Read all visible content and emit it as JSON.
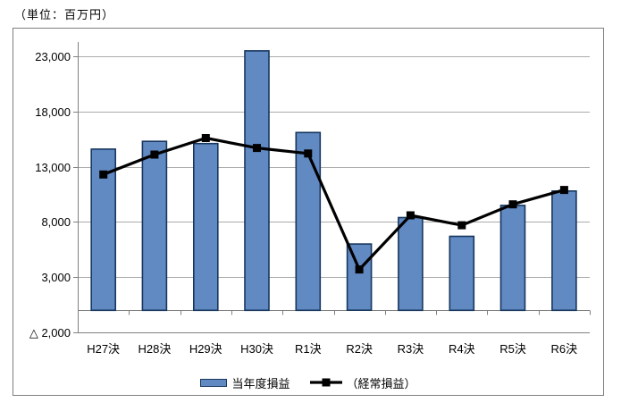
{
  "title": "（単位：百万円）",
  "chart_data": {
    "type": "bar",
    "subtype": "bar-line-combo",
    "categories": [
      "H27決",
      "H28決",
      "H29決",
      "H30決",
      "R1決",
      "R2決",
      "R3決",
      "R4決",
      "R5決",
      "R6決"
    ],
    "series": [
      {
        "name": "当年度損益",
        "type": "bar",
        "values": [
          14600,
          15300,
          15100,
          23500,
          16100,
          6000,
          8400,
          6700,
          9500,
          10800
        ]
      },
      {
        "name": "（経常損益）",
        "type": "line",
        "marker": "square",
        "values": [
          12300,
          14100,
          15600,
          14700,
          14200,
          3700,
          8600,
          7700,
          9600,
          10900
        ]
      }
    ],
    "title": "（単位：百万円）",
    "xlabel": "",
    "ylabel": "",
    "ylim": [
      -2000,
      24300
    ],
    "y_major_unit": 5000,
    "y_ticks": [
      {
        "value": 23000,
        "label": "23,000"
      },
      {
        "value": 18000,
        "label": "18,000"
      },
      {
        "value": 13000,
        "label": "13,000"
      },
      {
        "value": 8000,
        "label": "8,000"
      },
      {
        "value": 3000,
        "label": "3,000"
      },
      {
        "value": -2000,
        "label": "△ 2,000"
      }
    ],
    "grid": true,
    "legend_position": "bottom"
  },
  "legend": {
    "items": [
      {
        "label": "当年度損益",
        "swatch": "bar-swatch"
      },
      {
        "label": "（経常損益）",
        "swatch": "line-marker-swatch"
      }
    ]
  },
  "colors": {
    "bar_fill": "#6189C2",
    "bar_border": "#17375E",
    "line": "#000000",
    "marker": "#000000",
    "gridline": "#ABABAB",
    "axis": "#808080",
    "chart_border": "#7F7F7F",
    "background": "#FFFFFF"
  }
}
